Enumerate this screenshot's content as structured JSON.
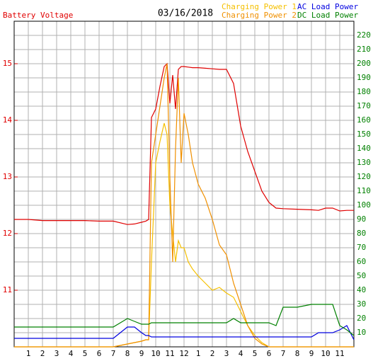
{
  "chart_data": {
    "type": "line",
    "title": "03/16/2018",
    "x": [
      0,
      1,
      2,
      3,
      4,
      5,
      6,
      7,
      8,
      8.5,
      9,
      9.3,
      9.5,
      9.7,
      10,
      10.3,
      10.6,
      10.8,
      11,
      11.2,
      11.4,
      11.6,
      11.8,
      12,
      12.3,
      12.6,
      13,
      13.5,
      14,
      14.5,
      15,
      15.5,
      16,
      16.5,
      17,
      17.5,
      18,
      18.5,
      19,
      20,
      21,
      21.5,
      22,
      22.5,
      23,
      23.5,
      24
    ],
    "xlim": [
      0,
      24
    ],
    "xticks": [
      1,
      2,
      3,
      4,
      5,
      6,
      7,
      8,
      9,
      10,
      11,
      12,
      {
        "value": 13,
        "label": "1"
      },
      {
        "value": 14,
        "label": "2"
      },
      {
        "value": 15,
        "label": "3"
      },
      {
        "value": 16,
        "label": "4"
      },
      {
        "value": 17,
        "label": "5"
      },
      {
        "value": 18,
        "label": "6"
      },
      {
        "value": 19,
        "label": "7"
      },
      {
        "value": 20,
        "label": "8"
      },
      {
        "value": 21,
        "label": "9"
      },
      {
        "value": 22,
        "label": "10"
      },
      {
        "value": 23,
        "label": "11"
      }
    ],
    "ylim": [
      10,
      15.75
    ],
    "yticks": [
      11,
      12,
      13,
      14,
      15
    ],
    "y2lim": [
      0,
      230
    ],
    "y2ticks": [
      10,
      20,
      30,
      40,
      50,
      60,
      70,
      80,
      90,
      100,
      110,
      120,
      130,
      140,
      150,
      160,
      170,
      180,
      190,
      200,
      210,
      220
    ],
    "grid": true,
    "series": [
      {
        "name": "Battery Voltage",
        "color": "#e00000",
        "axis": "y",
        "values": [
          12.25,
          12.25,
          12.23,
          12.23,
          12.23,
          12.23,
          12.22,
          12.22,
          12.16,
          12.17,
          12.2,
          12.22,
          12.25,
          14.05,
          14.2,
          14.6,
          14.95,
          15.0,
          14.3,
          14.8,
          14.2,
          14.9,
          14.95,
          14.95,
          14.94,
          14.93,
          14.93,
          14.92,
          14.91,
          14.9,
          14.9,
          14.65,
          13.9,
          13.45,
          13.1,
          12.75,
          12.55,
          12.45,
          12.44,
          12.43,
          12.42,
          12.41,
          12.45,
          12.45,
          12.4,
          12.41,
          12.41
        ]
      },
      {
        "name": "Charging Power 1",
        "color": "#f5c000",
        "axis": "y2",
        "values": [
          0,
          0,
          0,
          0,
          0,
          0,
          0,
          0,
          2,
          3,
          4,
          5,
          5,
          60,
          130,
          145,
          158,
          150,
          100,
          80,
          60,
          75,
          70,
          70,
          60,
          55,
          50,
          45,
          40,
          42,
          38,
          35,
          25,
          15,
          8,
          3,
          0,
          0,
          0,
          0,
          0,
          0,
          0,
          0,
          0,
          0,
          0
        ]
      },
      {
        "name": "Charging Power 2",
        "color": "#f09000",
        "axis": "y2",
        "values": [
          0,
          0,
          0,
          0,
          0,
          0,
          0,
          0,
          2,
          3,
          4,
          5,
          5,
          130,
          150,
          170,
          190,
          200,
          120,
          60,
          140,
          190,
          130,
          165,
          150,
          130,
          115,
          105,
          90,
          72,
          65,
          45,
          30,
          15,
          6,
          2,
          0,
          0,
          0,
          0,
          0,
          0,
          0,
          0,
          0,
          0,
          0
        ]
      },
      {
        "name": "AC Load Power",
        "color": "#0000e0",
        "axis": "y2",
        "values": [
          6,
          6,
          6,
          6,
          6,
          6,
          6,
          6,
          14,
          14,
          10,
          8,
          8,
          7,
          7,
          7,
          7,
          7,
          7,
          7,
          7,
          7,
          7,
          7,
          7,
          7,
          7,
          7,
          7,
          7,
          7,
          7,
          7,
          7,
          7,
          7,
          7,
          7,
          7,
          7,
          7,
          10,
          10,
          10,
          12,
          15,
          5
        ]
      },
      {
        "name": "DC Load Power",
        "color": "#008000",
        "axis": "y2",
        "values": [
          14,
          14,
          14,
          14,
          14,
          14,
          14,
          14,
          20,
          18,
          16,
          16,
          16,
          17,
          17,
          17,
          17,
          17,
          17,
          17,
          17,
          17,
          17,
          17,
          17,
          17,
          17,
          17,
          17,
          17,
          17,
          20,
          17,
          17,
          17,
          17,
          17,
          15,
          28,
          28,
          30,
          30,
          30,
          30,
          15,
          12,
          8
        ]
      }
    ]
  }
}
